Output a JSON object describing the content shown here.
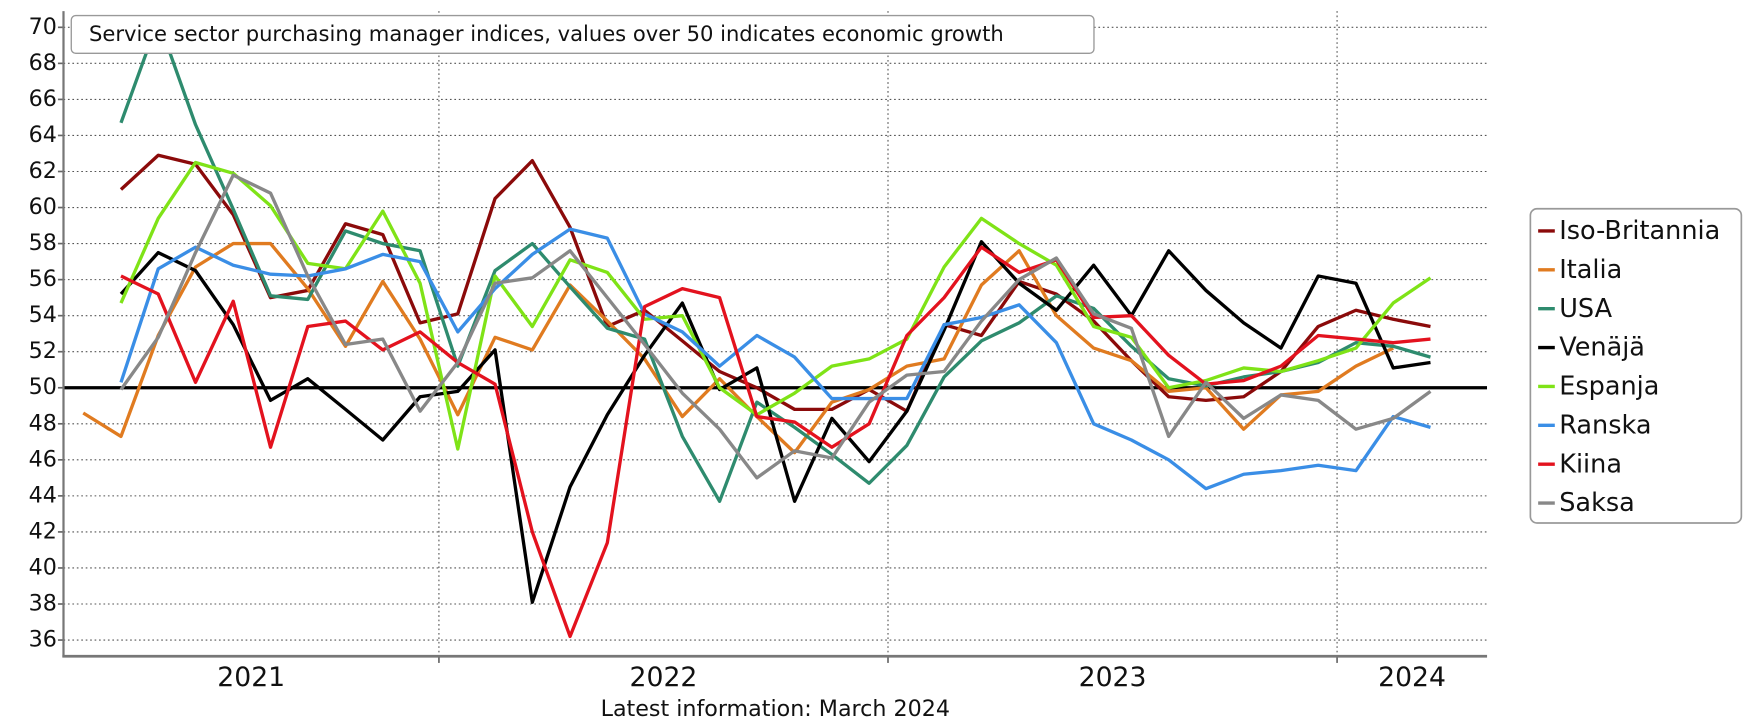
{
  "chart_data": {
    "type": "line",
    "title": "Service sector purchasing manager indices, values over 50 indicates economic growth",
    "x_caption": "Latest information: March 2024",
    "x": [
      2021.208,
      2021.292,
      2021.375,
      2021.458,
      2021.542,
      2021.625,
      2021.708,
      2021.792,
      2021.875,
      2021.958,
      2022.042,
      2022.125,
      2022.208,
      2022.292,
      2022.375,
      2022.458,
      2022.542,
      2022.625,
      2022.708,
      2022.792,
      2022.875,
      2022.958,
      2023.042,
      2023.125,
      2023.208,
      2023.292,
      2023.375,
      2023.458,
      2023.542,
      2023.625,
      2023.708,
      2023.792,
      2023.875,
      2023.958,
      2024.042,
      2024.125,
      2024.208
    ],
    "xlim": [
      2021.164,
      2024.334
    ],
    "xticks": [
      2022,
      2023,
      2024
    ],
    "xlabels": [
      2021,
      2022,
      2023,
      2024
    ],
    "ylim": [
      35.1,
      70.9
    ],
    "yticks": [
      36,
      38,
      40,
      42,
      44,
      46,
      48,
      50,
      52,
      54,
      56,
      58,
      60,
      62,
      64,
      66,
      68,
      70
    ],
    "reference_line": 50,
    "grid": true,
    "legend": "right",
    "series": [
      {
        "name": "Iso-Britannia",
        "color": "#8b0a0a",
        "values": [
          null,
          61.0,
          62.9,
          62.4,
          59.6,
          55.0,
          55.4,
          59.1,
          58.5,
          53.6,
          54.1,
          60.5,
          62.6,
          58.9,
          53.4,
          54.3,
          52.6,
          50.9,
          50.0,
          48.8,
          48.8,
          49.9,
          48.7,
          53.5,
          52.9,
          55.9,
          55.2,
          53.7,
          51.5,
          49.5,
          49.3,
          49.5,
          50.9,
          53.4,
          54.3,
          53.8,
          53.4
        ]
      },
      {
        "name": "Italia",
        "color": "#e07b20",
        "values": [
          48.6,
          47.3,
          52.9,
          56.7,
          58.0,
          58.0,
          55.5,
          52.3,
          55.9,
          52.7,
          48.5,
          52.8,
          52.1,
          55.7,
          53.7,
          51.6,
          48.4,
          50.5,
          48.4,
          46.4,
          49.2,
          49.9,
          51.2,
          51.6,
          55.7,
          57.6,
          54.0,
          52.2,
          51.5,
          49.8,
          50.0,
          47.7,
          49.6,
          49.8,
          51.2,
          52.2,
          null
        ]
      },
      {
        "name": "USA",
        "color": "#2e8b6e",
        "values": [
          null,
          64.7,
          70.4,
          64.6,
          59.9,
          55.1,
          54.9,
          58.7,
          58.0,
          57.6,
          51.2,
          56.5,
          58.0,
          55.6,
          53.3,
          52.7,
          47.3,
          43.7,
          49.2,
          47.8,
          46.3,
          44.7,
          46.8,
          50.6,
          52.6,
          53.6,
          55.1,
          54.4,
          52.3,
          50.5,
          50.1,
          50.6,
          50.9,
          51.4,
          52.5,
          52.3,
          51.7
        ]
      },
      {
        "name": "Venäjä",
        "color": "#000000",
        "values": [
          null,
          55.2,
          57.5,
          56.5,
          53.5,
          49.3,
          50.5,
          48.8,
          47.1,
          49.5,
          49.8,
          52.1,
          38.1,
          44.5,
          48.5,
          51.8,
          54.7,
          49.9,
          51.1,
          43.7,
          48.3,
          45.9,
          48.7,
          53.2,
          58.1,
          55.8,
          54.3,
          56.8,
          54.0,
          57.6,
          55.4,
          53.6,
          52.2,
          56.2,
          55.8,
          51.1,
          51.4
        ]
      },
      {
        "name": "Espanja",
        "color": "#7fe317",
        "values": [
          null,
          54.7,
          59.4,
          62.5,
          61.9,
          60.1,
          56.9,
          56.6,
          59.8,
          55.8,
          46.6,
          56.2,
          53.4,
          57.1,
          56.4,
          53.8,
          54.0,
          50.0,
          48.5,
          49.7,
          51.2,
          51.6,
          52.7,
          56.7,
          59.4,
          58.0,
          56.8,
          53.4,
          52.8,
          50.0,
          50.4,
          51.1,
          50.9,
          51.5,
          52.2,
          54.7,
          56.1
        ]
      },
      {
        "name": "Ranska",
        "color": "#3a8ee6",
        "values": [
          null,
          50.3,
          56.6,
          57.8,
          56.8,
          56.3,
          56.2,
          56.6,
          57.4,
          57.0,
          53.1,
          55.5,
          57.4,
          58.8,
          58.3,
          54.1,
          53.1,
          51.2,
          52.9,
          51.7,
          49.4,
          49.4,
          49.4,
          53.5,
          53.9,
          54.6,
          52.5,
          48.0,
          47.1,
          46.0,
          44.4,
          45.2,
          45.4,
          45.7,
          45.4,
          48.4,
          47.8
        ]
      },
      {
        "name": "Kiina",
        "color": "#e3121e",
        "values": [
          null,
          56.2,
          55.2,
          50.3,
          54.8,
          46.7,
          53.4,
          53.7,
          52.1,
          53.1,
          51.4,
          50.2,
          42.0,
          36.2,
          41.4,
          54.5,
          55.5,
          55.0,
          48.4,
          48.1,
          46.7,
          48.0,
          52.9,
          55.0,
          57.8,
          56.4,
          57.1,
          53.9,
          54.0,
          51.8,
          50.2,
          50.4,
          51.2,
          52.9,
          52.7,
          52.5,
          52.7
        ]
      },
      {
        "name": "Saksa",
        "color": "#888888",
        "values": [
          null,
          49.9,
          52.8,
          57.5,
          61.8,
          60.8,
          56.2,
          52.4,
          52.7,
          48.7,
          51.4,
          55.8,
          56.1,
          57.6,
          55.0,
          52.4,
          49.7,
          47.7,
          45.0,
          46.5,
          46.1,
          49.2,
          50.7,
          50.9,
          53.7,
          56.0,
          57.2,
          54.1,
          53.3,
          47.3,
          50.3,
          48.3,
          49.6,
          49.3,
          47.7,
          48.3,
          49.8
        ]
      }
    ]
  }
}
